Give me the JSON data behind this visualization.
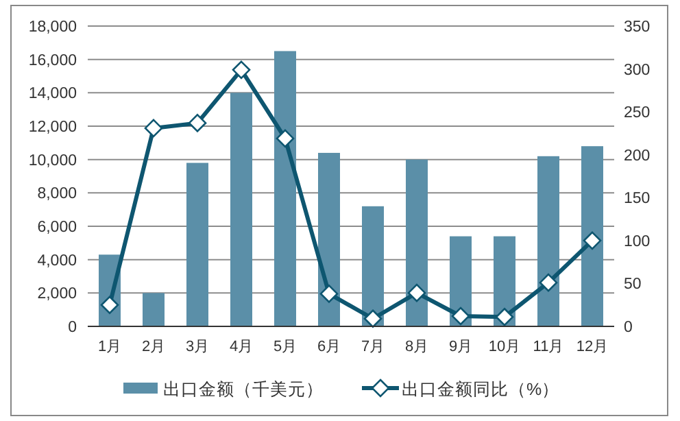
{
  "chart_data": {
    "type": "bar",
    "categories": [
      "1月",
      "2月",
      "3月",
      "4月",
      "5月",
      "6月",
      "7月",
      "8月",
      "9月",
      "10月",
      "11月",
      "12月"
    ],
    "series": [
      {
        "name": "出口金额（千美元）",
        "color": "#5b8fa8",
        "values": [
          4300,
          2000,
          9800,
          14000,
          16500,
          10400,
          7200,
          10000,
          5400,
          5400,
          10200,
          10800
        ]
      },
      {
        "name": "出口金额同比（%）",
        "type": "line",
        "axis": "y2",
        "color": "#0e5670",
        "marker": "diamond",
        "values": [
          25,
          231,
          237,
          299,
          219,
          38,
          9,
          39,
          12,
          11,
          51,
          100
        ]
      }
    ],
    "ylim": [
      0,
      18000
    ],
    "yticks": [
      {
        "value": 0,
        "label": "0"
      },
      {
        "value": 2000,
        "label": "2,000"
      },
      {
        "value": 4000,
        "label": "4,000"
      },
      {
        "value": 6000,
        "label": "6,000"
      },
      {
        "value": 8000,
        "label": "8,000"
      },
      {
        "value": 10000,
        "label": "10,000"
      },
      {
        "value": 12000,
        "label": "12,000"
      },
      {
        "value": 14000,
        "label": "14,000"
      },
      {
        "value": 16000,
        "label": "16,000"
      },
      {
        "value": 18000,
        "label": "18,000"
      }
    ],
    "y2lim": [
      0,
      350
    ],
    "y2ticks": [
      0,
      50,
      100,
      150,
      200,
      250,
      300,
      350
    ],
    "grid": "y",
    "legend": "bottom"
  }
}
